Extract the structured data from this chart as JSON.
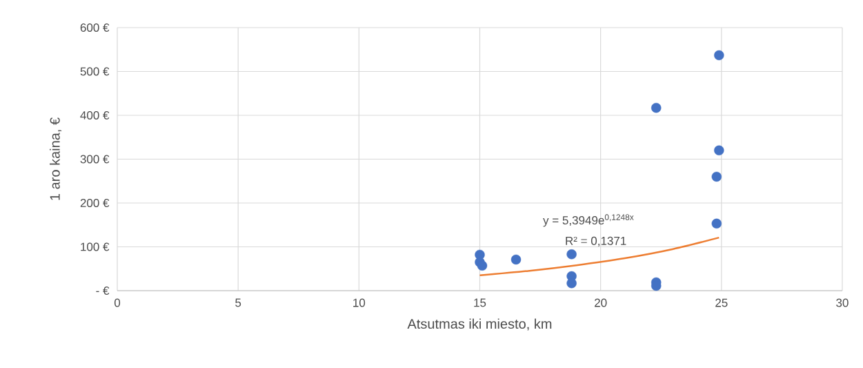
{
  "chart_data": {
    "type": "scatter",
    "xlabel": "Atsutmas iki miesto, km",
    "ylabel": "1 aro kaina, €",
    "xlim": [
      0,
      30
    ],
    "xticks": [
      0,
      5,
      10,
      15,
      20,
      25,
      30
    ],
    "ylim": [
      0,
      600
    ],
    "yticks": [
      {
        "value": 0,
        "label": "-  €"
      },
      {
        "value": 100,
        "label": "100 €"
      },
      {
        "value": 200,
        "label": "200 €"
      },
      {
        "value": 300,
        "label": "300 €"
      },
      {
        "value": 400,
        "label": "400 €"
      },
      {
        "value": 500,
        "label": "500 €"
      },
      {
        "value": 600,
        "label": "600 €"
      }
    ],
    "grid": true,
    "series": [
      {
        "type": "scatter",
        "marker": "circle",
        "color": "#4472c4",
        "x": [
          15,
          15,
          15.1,
          16.5,
          18.8,
          18.8,
          18.8,
          22.3,
          22.3,
          22.3,
          24.9,
          24.9,
          24.8,
          24.8
        ],
        "values": [
          82,
          65,
          57,
          71,
          83,
          33,
          17,
          19,
          11,
          417,
          537,
          320,
          260,
          153
        ]
      },
      {
        "type": "line",
        "marker": "none",
        "color": "#ed7d31",
        "x": [
          15,
          17,
          19,
          21,
          23,
          24.9
        ],
        "values": [
          35,
          45,
          58,
          74,
          95,
          121
        ]
      }
    ],
    "annotations": [
      "y = 5,3949e$^{0,1248x}$",
      "R² = 0,1371"
    ]
  }
}
